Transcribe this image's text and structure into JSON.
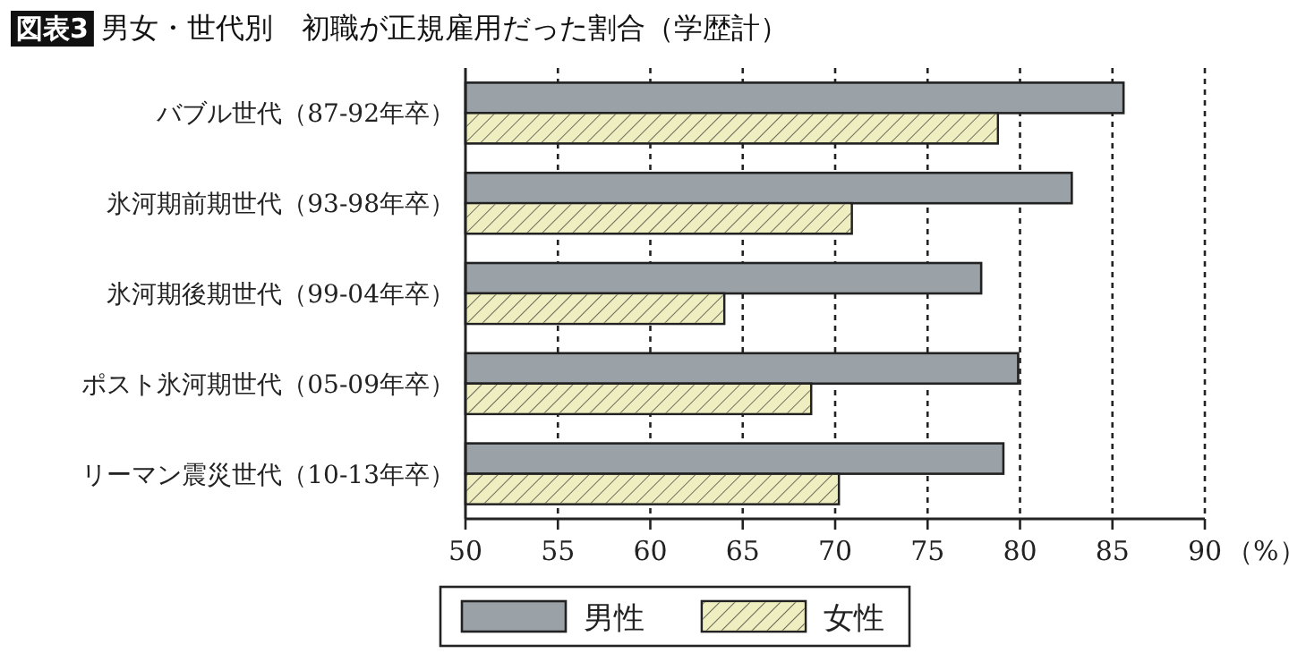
{
  "chart_data": {
    "type": "bar",
    "orientation": "horizontal",
    "title": "男女・世代別　初職が正規雇用だった割合（学歴計）",
    "annotations": [
      "図表3"
    ],
    "categories": [
      "バブル世代（87-92年卒）",
      "氷河期前期世代（93-98年卒）",
      "氷河期後期世代（99-04年卒）",
      "ポスト氷河期世代（05-09年卒）",
      "リーマン震災世代（10-13年卒）"
    ],
    "series": [
      {
        "name": "男性",
        "color": "#9aa2a8",
        "values": [
          85.6,
          82.8,
          77.9,
          79.9,
          79.1
        ]
      },
      {
        "name": "女性",
        "color": "#eeeec0",
        "values": [
          78.8,
          70.9,
          64.0,
          68.7,
          70.2
        ]
      }
    ],
    "xlim": [
      50,
      90
    ],
    "xticks": [
      50,
      55,
      60,
      65,
      70,
      75,
      80,
      85,
      90
    ],
    "xlabel": "（%）",
    "grid": "x",
    "legend": "bottom"
  }
}
